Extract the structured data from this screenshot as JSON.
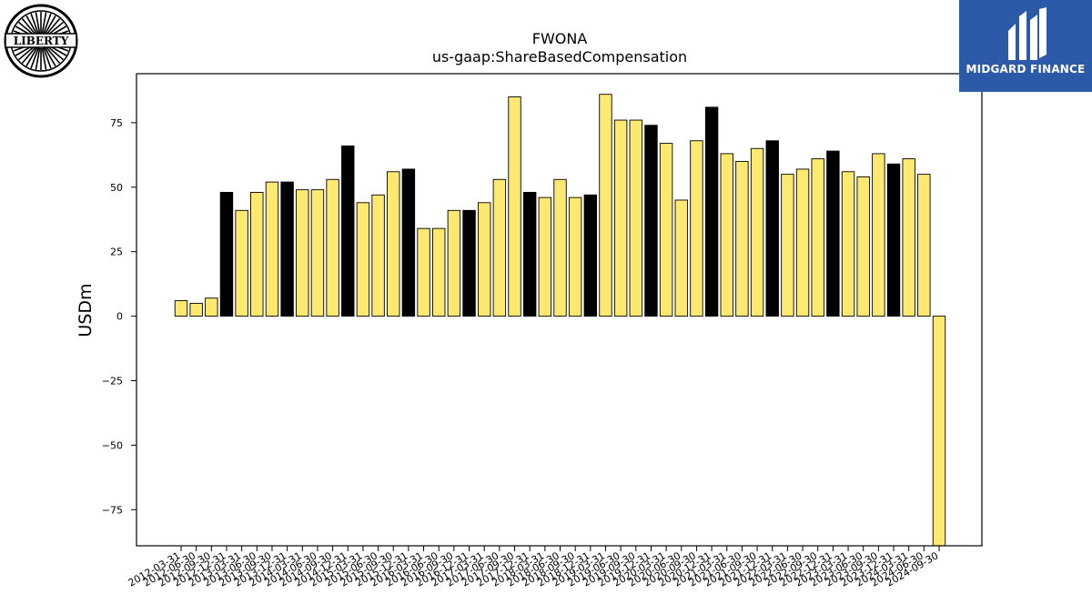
{
  "logos": {
    "left_text": "LIBERTY",
    "right_text": "MIDGARD FINANCE"
  },
  "colors": {
    "bar_fill": "#fde96f",
    "bar_highlight": "#000000",
    "bar_edge": "#000000",
    "brand_blue": "#2c5aa8"
  },
  "chart_data": {
    "type": "bar",
    "title": "FWONA",
    "subtitle": "us-gaap:ShareBasedCompensation",
    "ylabel": "USDm",
    "xlabel": "",
    "ylim": [
      -89,
      94
    ],
    "yticks": [
      -75,
      -50,
      -25,
      0,
      25,
      50,
      75
    ],
    "grid": false,
    "categories": [
      "2012-03-31",
      "2012-06-30",
      "2012-09-30",
      "2012-12-31",
      "2013-03-31",
      "2013-06-30",
      "2013-09-30",
      "2013-12-31",
      "2014-03-31",
      "2014-06-30",
      "2014-09-30",
      "2014-12-31",
      "2015-03-31",
      "2015-06-30",
      "2015-09-30",
      "2015-12-31",
      "2016-03-31",
      "2016-06-30",
      "2016-09-30",
      "2016-12-31",
      "2017-03-31",
      "2017-06-30",
      "2017-09-30",
      "2017-12-31",
      "2018-03-31",
      "2018-06-30",
      "2018-09-30",
      "2018-12-31",
      "2019-03-31",
      "2019-06-30",
      "2019-09-30",
      "2019-12-31",
      "2020-03-31",
      "2020-06-30",
      "2020-09-30",
      "2020-12-31",
      "2021-03-31",
      "2021-06-30",
      "2021-09-30",
      "2021-12-31",
      "2022-03-31",
      "2022-06-30",
      "2022-09-30",
      "2022-12-31",
      "2023-03-31",
      "2023-06-30",
      "2023-09-30",
      "2023-12-31",
      "2024-03-31",
      "2024-06-30",
      "2024-09-30"
    ],
    "xtick_labels": [
      "2012-03-31",
      "2012-06-30",
      "2012-09-30",
      "2012-12-31",
      "2013-03-31",
      "2013-06-30",
      "2013-09-30",
      "2013-12-31",
      "2014-03-31",
      "2014-06-30",
      "2014-09-30",
      "2014-12-31",
      "2015-03-31",
      "2015-06-30",
      "2015-09-30",
      "2015-12-31",
      "2016-03-31",
      "2016-06-30",
      "2016-09-30",
      "2016-12-31",
      "2017-03-31",
      "2017-06-30",
      "2017-09-30",
      "2017-12-31",
      "2018-03-31",
      "2018-06-30",
      "2018-09-30",
      "2018-12-31",
      "2019-03-31",
      "2019-06-30",
      "2019-09-30",
      "2019-12-31",
      "2020-03-31",
      "2020-06-30",
      "2020-09-30",
      "2020-12-31",
      "2021-03-31",
      "2021-06-30",
      "2021-09-30",
      "2021-12-31",
      "2022-03-31",
      "2022-06-30",
      "2022-09-30",
      "2022-12-31",
      "2023-03-31",
      "2023-06-30",
      "2023-09-30",
      "2023-12-31",
      "2024-03-31",
      "2024-06-30",
      "2024-09-30"
    ],
    "values": [
      6,
      5,
      7,
      48,
      41,
      48,
      52,
      52,
      49,
      49,
      53,
      66,
      44,
      47,
      56,
      57,
      34,
      34,
      41,
      41,
      44,
      53,
      85,
      48,
      46,
      53,
      46,
      47,
      86,
      76,
      76,
      74,
      67,
      45,
      68,
      81,
      63,
      60,
      65,
      68,
      55,
      57,
      61,
      64,
      56,
      54,
      63,
      59,
      61,
      55,
      -89
    ],
    "highlight": [
      false,
      false,
      false,
      true,
      false,
      false,
      false,
      true,
      false,
      false,
      false,
      true,
      false,
      false,
      false,
      true,
      false,
      false,
      false,
      true,
      false,
      false,
      false,
      true,
      false,
      false,
      false,
      true,
      false,
      false,
      false,
      true,
      false,
      false,
      false,
      true,
      false,
      false,
      false,
      true,
      false,
      false,
      false,
      true,
      false,
      false,
      false,
      true,
      false,
      false,
      false
    ]
  }
}
